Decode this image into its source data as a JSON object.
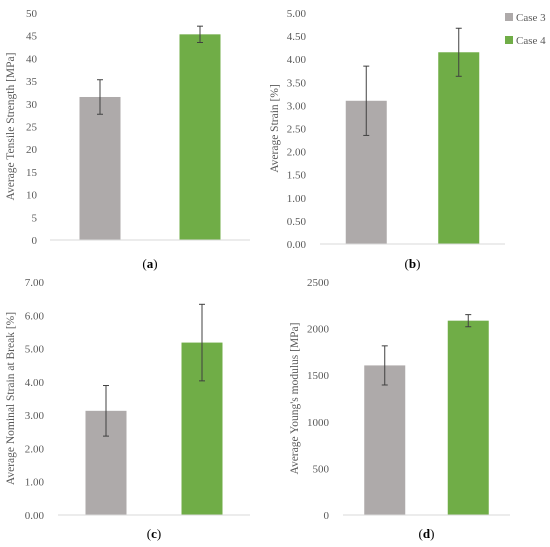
{
  "legend": {
    "placement": "top-right",
    "entries": [
      {
        "label": "Case 3",
        "color": "#aeaaaa"
      },
      {
        "label": "Case 4",
        "color": "#70ad47"
      }
    ]
  },
  "colors": {
    "case3": "#aeaaaa",
    "case4": "#70ad47",
    "axis": "#d9d9d9",
    "text": "#595959"
  },
  "chart_data": [
    {
      "type": "bar",
      "panel_label": "a",
      "categories": [
        "Case 3",
        "Case 4"
      ],
      "values": [
        31.5,
        45.3
      ],
      "errors": [
        3.8,
        1.8
      ],
      "ylabel": "Average Tensile Strength [MPa]",
      "ylim": [
        0,
        50
      ],
      "yticks": [
        0,
        5,
        10,
        15,
        20,
        25,
        30,
        35,
        40,
        45,
        50
      ],
      "ytick_labels": [
        "0",
        "5",
        "10",
        "15",
        "20",
        "25",
        "30",
        "35",
        "40",
        "45",
        "50"
      ],
      "grid": false
    },
    {
      "type": "bar",
      "panel_label": "b",
      "categories": [
        "Case 3",
        "Case 4"
      ],
      "values": [
        3.1,
        4.15
      ],
      "errors": [
        0.75,
        0.52
      ],
      "ylabel": "Average Strain [%]",
      "ylim": [
        0,
        5
      ],
      "yticks": [
        0,
        0.5,
        1,
        1.5,
        2,
        2.5,
        3,
        3.5,
        4,
        4.5,
        5
      ],
      "ytick_labels": [
        "0.00",
        "0.50",
        "1.00",
        "1.50",
        "2.00",
        "2.50",
        "3.00",
        "3.50",
        "4.00",
        "4.50",
        "5.00"
      ],
      "grid": false
    },
    {
      "type": "bar",
      "panel_label": "c",
      "categories": [
        "Case 3",
        "Case 4"
      ],
      "values": [
        3.13,
        5.18
      ],
      "errors": [
        0.76,
        1.15
      ],
      "ylabel": "Average Nominal Strain at Break [%]",
      "ylim": [
        0,
        7
      ],
      "yticks": [
        0,
        1,
        2,
        3,
        4,
        5,
        6,
        7
      ],
      "ytick_labels": [
        "0.00",
        "1.00",
        "2.00",
        "3.00",
        "4.00",
        "5.00",
        "6.00",
        "7.00"
      ],
      "grid": false
    },
    {
      "type": "bar",
      "panel_label": "d",
      "categories": [
        "Case 3",
        "Case 4"
      ],
      "values": [
        1605,
        2085
      ],
      "errors": [
        210,
        65
      ],
      "ylabel": "Average Young's modulus [MPa]",
      "ylim": [
        0,
        2500
      ],
      "yticks": [
        0,
        500,
        1000,
        1500,
        2000,
        2500
      ],
      "ytick_labels": [
        "0",
        "500",
        "1000",
        "1500",
        "2000",
        "2500"
      ],
      "grid": false
    }
  ]
}
